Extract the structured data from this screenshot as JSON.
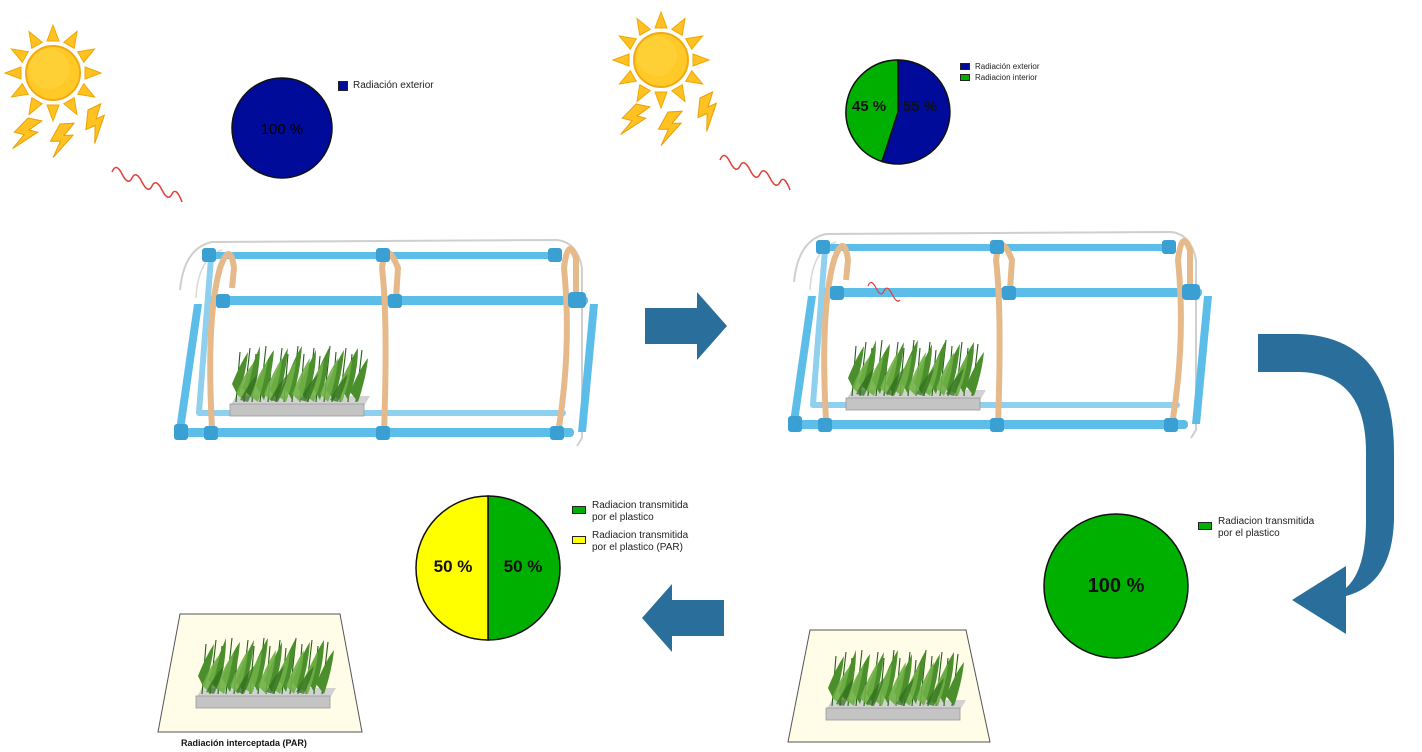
{
  "colors": {
    "exterior": "#000c99",
    "interior": "#00b000",
    "par": "#ffff00",
    "arrow": "#2a6f9b",
    "wave": "#e2403a",
    "sun": "#ffc222",
    "pipe": "#5cbde8",
    "hoop": "#e6b98a",
    "ground": "#fffce8"
  },
  "icons": [
    "sun-icon",
    "radiation-wave-icon",
    "greenhouse-icon",
    "plant-tray-icon",
    "flow-arrow-icon"
  ],
  "panels": {
    "exterior": {
      "pie": {
        "label": "100 %"
      },
      "legend": [
        {
          "label": "Radiación exterior",
          "color": "#000c99"
        }
      ]
    },
    "split": {
      "pie": {
        "label_interior": "45 %",
        "label_exterior": "55 %"
      },
      "legend": [
        {
          "label": "Radiación exterior",
          "color": "#000c99"
        },
        {
          "label": "Radiacion interior",
          "color": "#00b000"
        }
      ]
    },
    "transmitted": {
      "pie": {
        "label": "100 %"
      },
      "legend": [
        {
          "label": "Radiacion transmitida\npor el plastico",
          "color": "#00b000"
        }
      ]
    },
    "par": {
      "pie": {
        "label_par": "50 %",
        "label_transmitted": "50 %"
      },
      "legend": [
        {
          "label": "Radiacion transmitida\npor el plastico",
          "color": "#00b000"
        },
        {
          "label": "Radiacion transmitida\npor el plastico (PAR)",
          "color": "#ffff00"
        }
      ]
    }
  },
  "caption": "Radiación interceptada (PAR)",
  "chart_data": [
    {
      "type": "pie",
      "labels": [
        "Radiación exterior"
      ],
      "values": [
        100
      ]
    },
    {
      "type": "pie",
      "labels": [
        "Radiación exterior",
        "Radiacion interior"
      ],
      "values": [
        55,
        45
      ]
    },
    {
      "type": "pie",
      "labels": [
        "Radiacion transmitida por el plastico"
      ],
      "values": [
        100
      ]
    },
    {
      "type": "pie",
      "labels": [
        "Radiacion transmitida por el plastico",
        "Radiacion transmitida por el plastico (PAR)"
      ],
      "values": [
        50,
        50
      ]
    }
  ]
}
